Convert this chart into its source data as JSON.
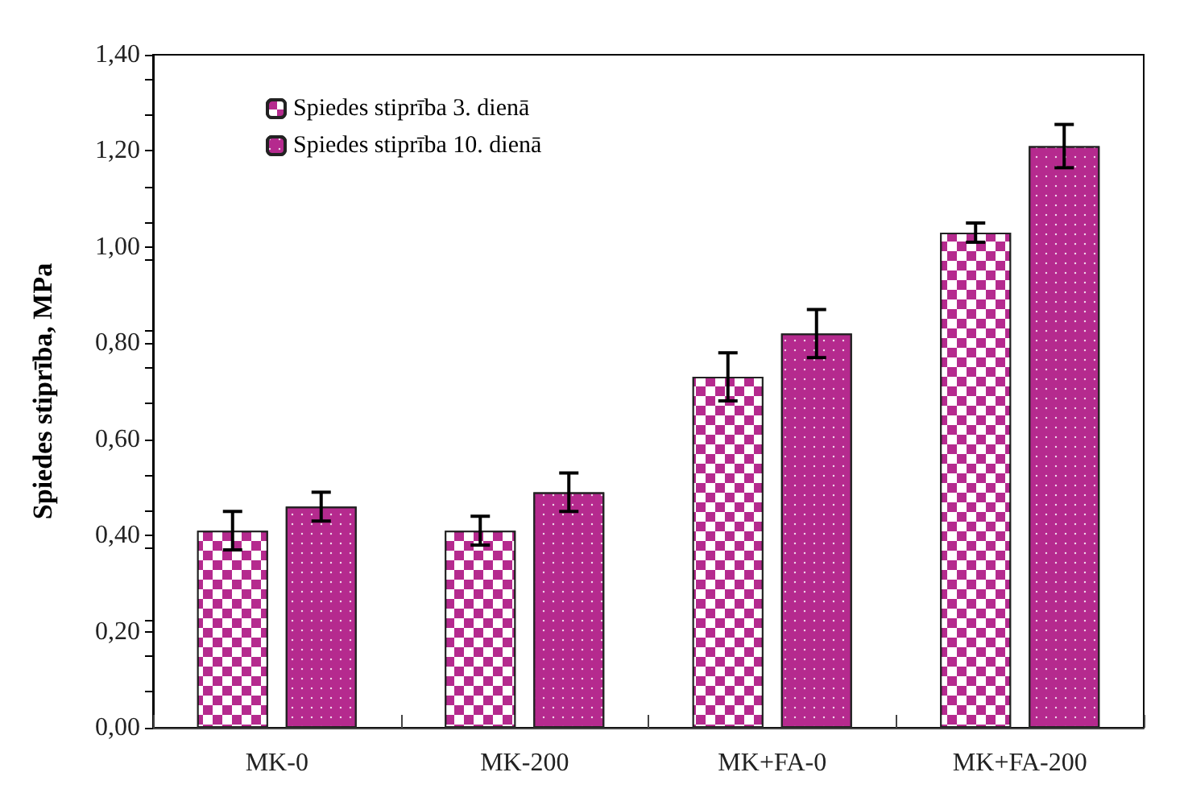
{
  "chart_data": {
    "type": "bar",
    "ylabel": "Spiedes stiprība, MPa",
    "categories": [
      "MK-0",
      "MK-200",
      "MK+FA-0",
      "MK+FA-200"
    ],
    "series": [
      {
        "name": "Spiedes stiprība 3. dienā",
        "color": "#b52a8e",
        "values": [
          0.41,
          0.41,
          0.73,
          1.03
        ],
        "errors": [
          0.04,
          0.03,
          0.05,
          0.02
        ]
      },
      {
        "name": "Spiedes stiprība 10. dienā",
        "color": "#b52a8e",
        "values": [
          0.46,
          0.49,
          0.82,
          1.21
        ],
        "errors": [
          0.03,
          0.04,
          0.05,
          0.045
        ]
      }
    ],
    "ylim": [
      0,
      1.4
    ],
    "yticks": [
      {
        "value": 0,
        "label": "0,00"
      },
      {
        "value": 0.2,
        "label": "0,20"
      },
      {
        "value": 0.4,
        "label": "0,40"
      },
      {
        "value": 0.6,
        "label": "0,60"
      },
      {
        "value": 0.8,
        "label": "0,80"
      },
      {
        "value": 1,
        "label": "1,00"
      },
      {
        "value": 1.2,
        "label": "1,20"
      },
      {
        "value": 1.4,
        "label": "1,40"
      }
    ],
    "grid": false,
    "legend": "top left"
  }
}
